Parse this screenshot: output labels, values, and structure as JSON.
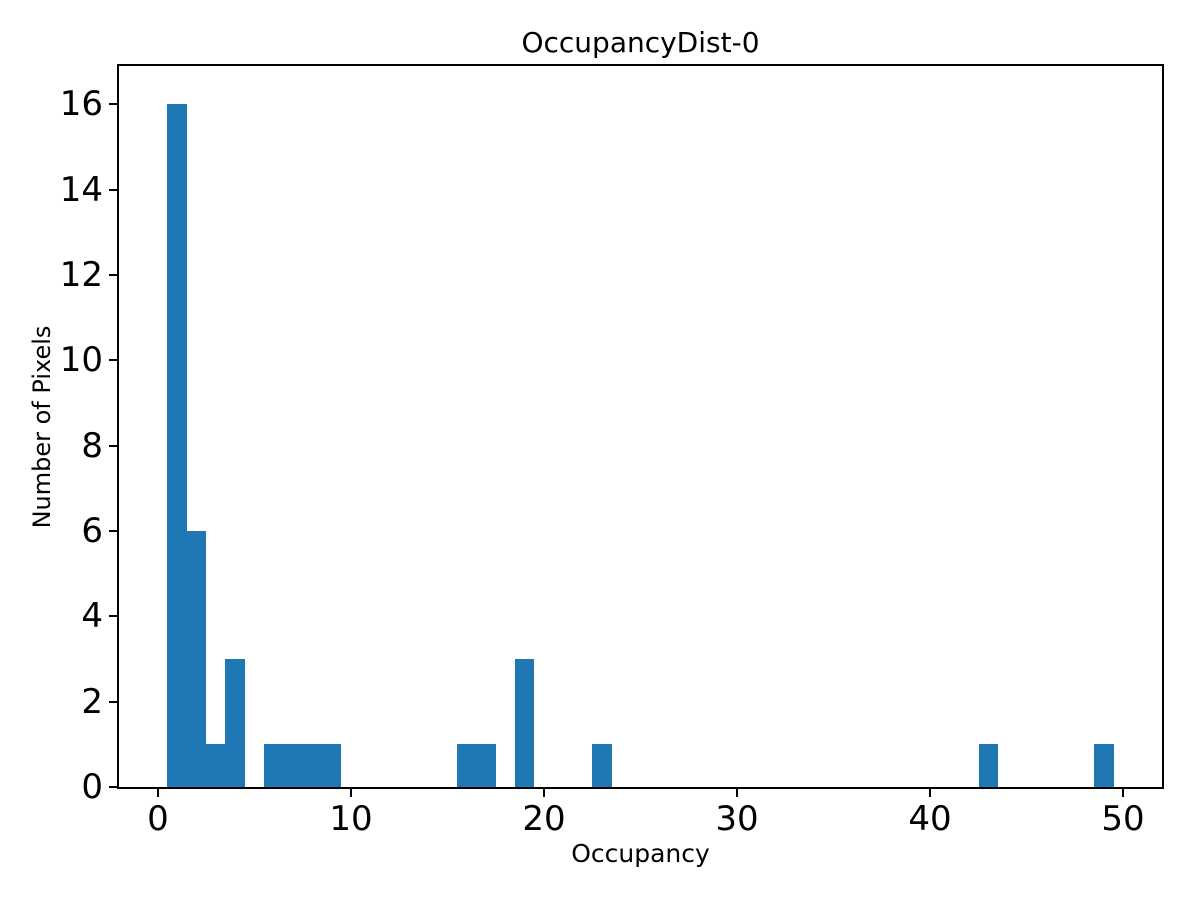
{
  "chart_data": {
    "type": "bar",
    "subtype": "histogram",
    "title": "OccupancyDist-0",
    "xlabel": "Occupancy",
    "ylabel": "Number of Pixels",
    "bar_color": "#1f77b4",
    "axis_color": "#000000",
    "background_color": "#ffffff",
    "grid": false,
    "legend": null,
    "xlim": [
      -2,
      52
    ],
    "ylim": [
      0,
      16.9
    ],
    "xticks": [
      0,
      10,
      20,
      30,
      40,
      50
    ],
    "yticks": [
      0,
      2,
      4,
      6,
      8,
      10,
      12,
      14,
      16
    ],
    "bin_width": 1,
    "bins_note": "bin edges at half-integers; all bins not listed have count 0",
    "bins": [
      {
        "center": 1,
        "count": 16
      },
      {
        "center": 2,
        "count": 6
      },
      {
        "center": 3,
        "count": 1
      },
      {
        "center": 4,
        "count": 3
      },
      {
        "center": 6,
        "count": 1
      },
      {
        "center": 7,
        "count": 1
      },
      {
        "center": 8,
        "count": 1
      },
      {
        "center": 9,
        "count": 1
      },
      {
        "center": 16,
        "count": 1
      },
      {
        "center": 17,
        "count": 1
      },
      {
        "center": 19,
        "count": 3
      },
      {
        "center": 23,
        "count": 1
      },
      {
        "center": 43,
        "count": 1
      },
      {
        "center": 49,
        "count": 1
      }
    ]
  }
}
